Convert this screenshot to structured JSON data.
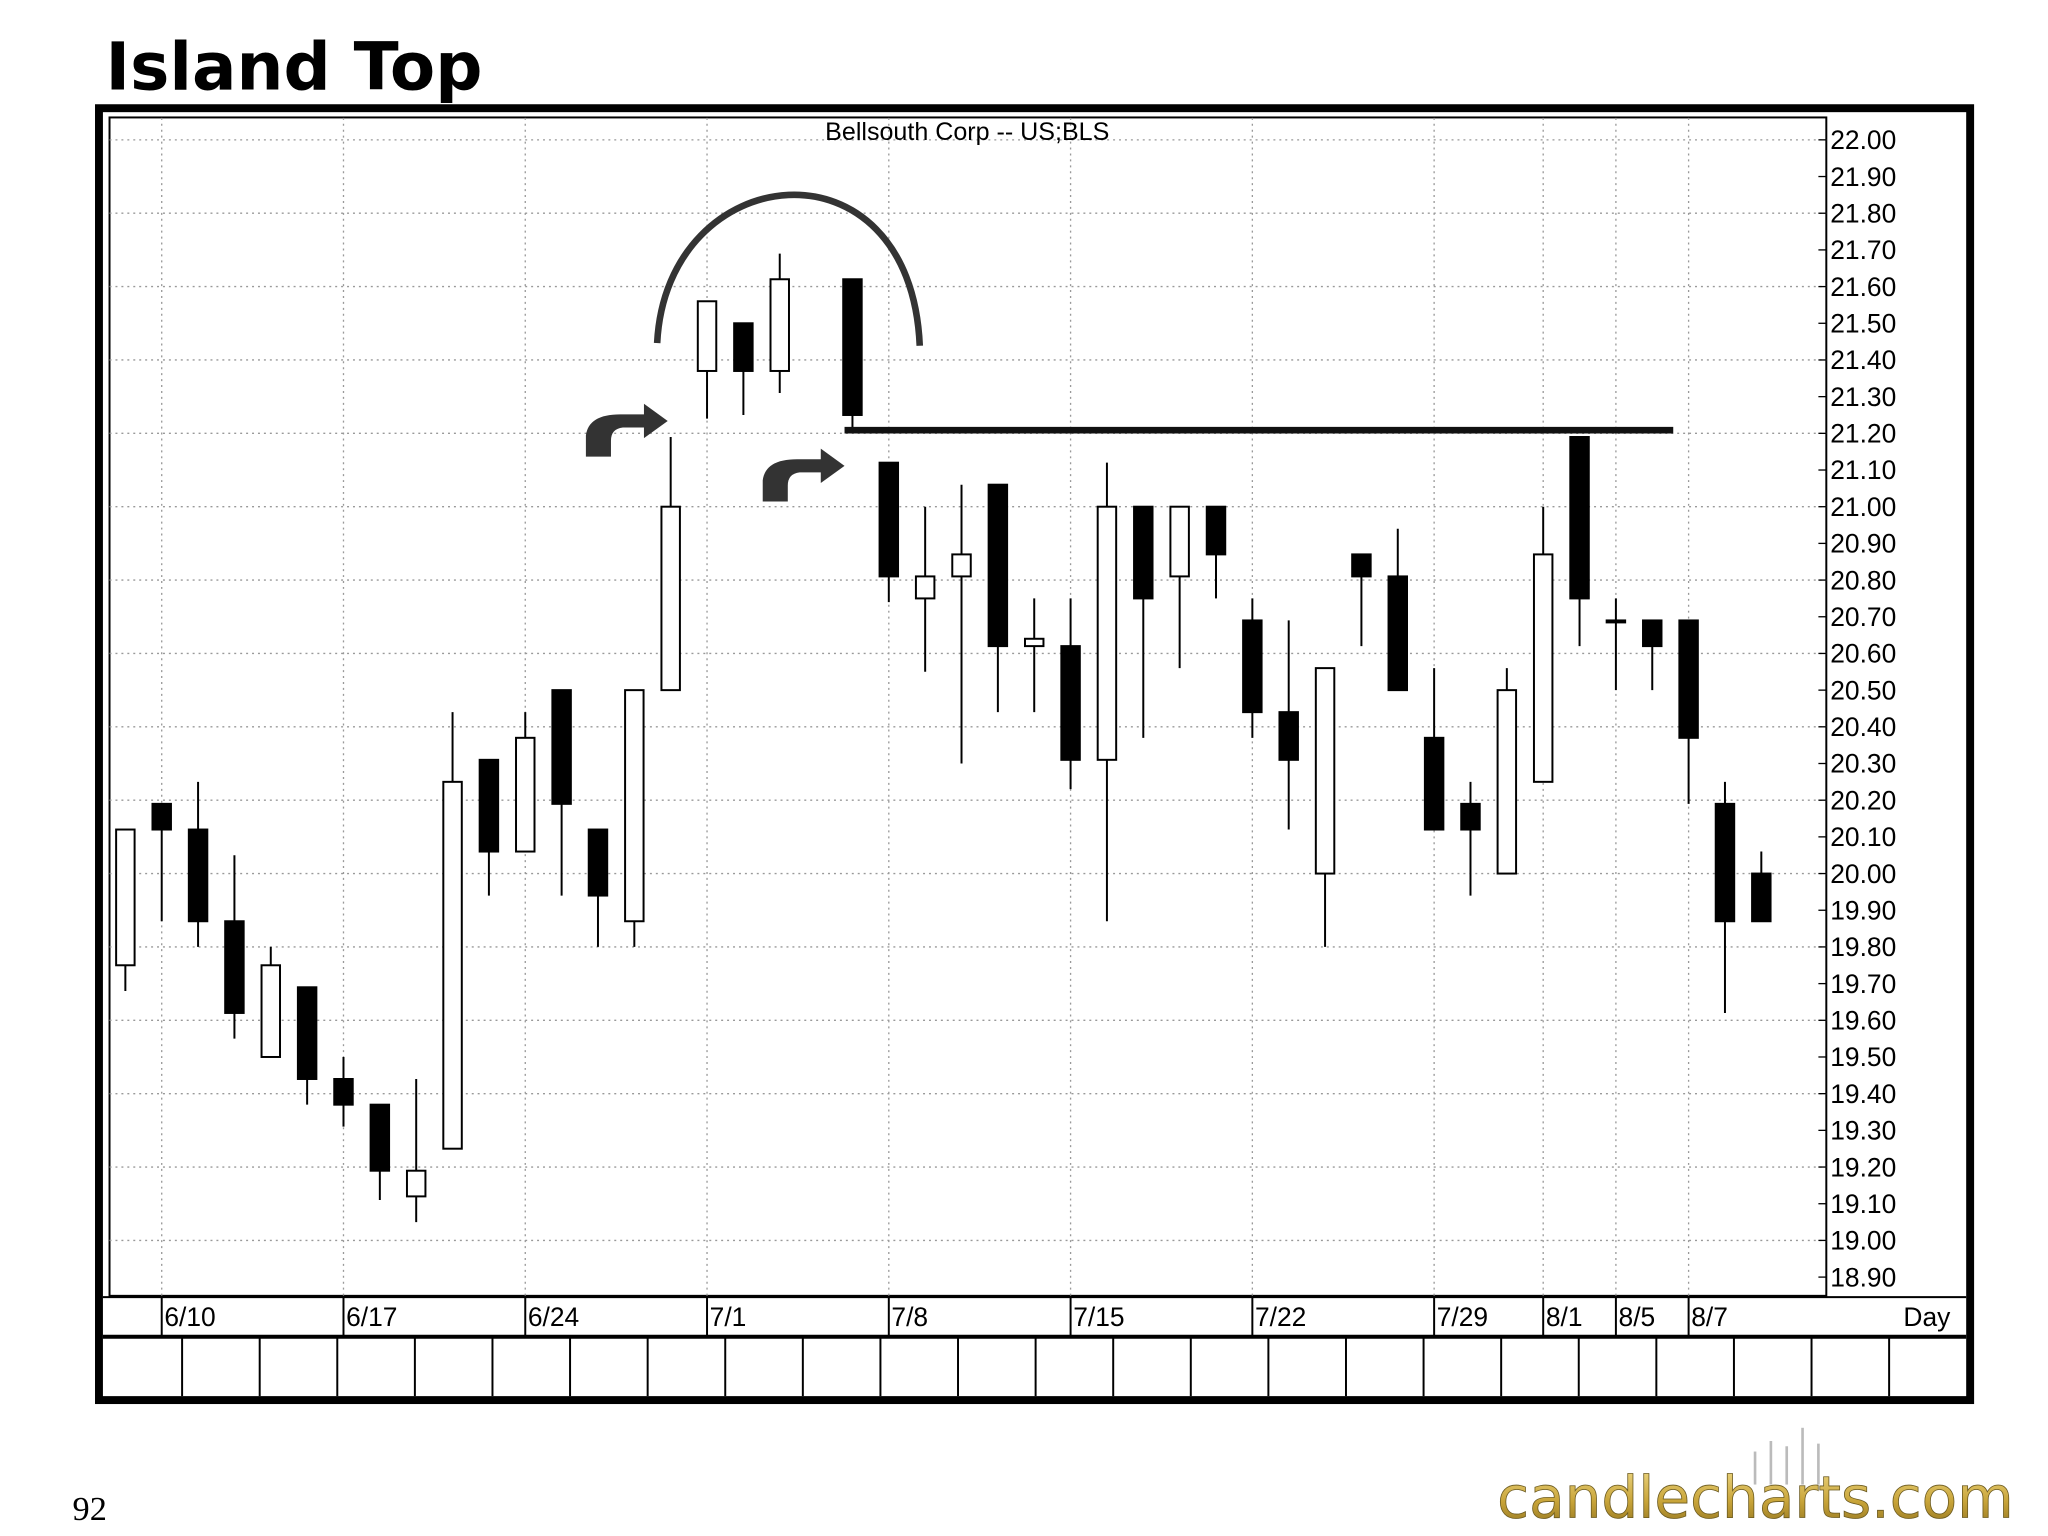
{
  "header": {
    "title": "Island Top",
    "page_number": "92",
    "logo": "candlecharts.com"
  },
  "chart_data": {
    "type": "candlestick",
    "title": "Bellsouth  Corp  --  US;BLS",
    "x_label": "Day",
    "categories": [
      null,
      "6/10",
      null,
      null,
      null,
      null,
      "6/17",
      null,
      null,
      null,
      null,
      "6/24",
      null,
      null,
      null,
      null,
      "7/1",
      null,
      null,
      null,
      null,
      "7/8",
      null,
      null,
      null,
      null,
      "7/15",
      null,
      null,
      null,
      null,
      "7/22",
      null,
      null,
      null,
      null,
      "7/29",
      null,
      null,
      "8/1",
      null,
      "8/5",
      null,
      "8/7",
      null,
      null
    ],
    "open": [
      19.75,
      20.19,
      20.12,
      19.87,
      19.5,
      19.69,
      19.44,
      19.37,
      19.12,
      19.25,
      20.31,
      20.06,
      20.5,
      20.12,
      19.87,
      20.5,
      21.37,
      21.5,
      21.37,
      null,
      21.62,
      21.12,
      20.75,
      20.81,
      21.06,
      20.62,
      20.62,
      20.31,
      21.0,
      20.81,
      21.0,
      20.69,
      20.44,
      20.0,
      20.87,
      20.81,
      20.37,
      20.19,
      20.0,
      20.25,
      21.19,
      20.69,
      20.69,
      20.69,
      20.19,
      20.0
    ],
    "high": [
      20.12,
      20.19,
      20.25,
      20.05,
      19.8,
      19.69,
      19.5,
      19.37,
      19.44,
      20.44,
      20.31,
      20.44,
      20.5,
      20.12,
      20.5,
      21.19,
      21.56,
      21.5,
      21.69,
      null,
      21.62,
      21.12,
      21.0,
      21.06,
      21.06,
      20.75,
      20.75,
      21.12,
      21.0,
      21.0,
      21.0,
      20.75,
      20.69,
      20.56,
      20.87,
      20.94,
      20.56,
      20.25,
      20.56,
      21.0,
      21.19,
      20.75,
      20.69,
      20.69,
      20.25,
      20.06
    ],
    "low": [
      19.68,
      19.87,
      19.8,
      19.55,
      19.5,
      19.37,
      19.31,
      19.11,
      19.05,
      19.25,
      19.94,
      20.06,
      19.94,
      19.8,
      19.8,
      20.5,
      21.24,
      21.25,
      21.31,
      null,
      21.21,
      20.74,
      20.55,
      20.3,
      20.44,
      20.44,
      20.23,
      19.87,
      20.37,
      20.56,
      20.75,
      20.37,
      20.12,
      19.8,
      20.62,
      20.5,
      20.12,
      19.94,
      20.0,
      20.25,
      20.62,
      20.5,
      20.5,
      20.19,
      19.62,
      19.87
    ],
    "close": [
      20.12,
      20.12,
      19.87,
      19.62,
      19.75,
      19.44,
      19.37,
      19.19,
      19.19,
      20.25,
      20.06,
      20.37,
      20.19,
      19.94,
      20.5,
      21.0,
      21.56,
      21.37,
      21.62,
      null,
      21.25,
      20.81,
      20.81,
      20.87,
      20.62,
      20.64,
      20.31,
      21.0,
      20.75,
      21.0,
      20.87,
      20.44,
      20.31,
      20.56,
      20.81,
      20.5,
      20.12,
      20.12,
      20.5,
      20.87,
      20.75,
      20.69,
      20.62,
      20.37,
      19.87,
      19.87
    ],
    "up_color": "#ffffff",
    "down_color": "#000000",
    "ylim": [
      18.85,
      22.06
    ],
    "yticks": [
      {
        "value": 18.9,
        "label": "18.90"
      },
      {
        "value": 19.0,
        "label": "19.00"
      },
      {
        "value": 19.1,
        "label": "19.10"
      },
      {
        "value": 19.2,
        "label": "19.20"
      },
      {
        "value": 19.3,
        "label": "19.30"
      },
      {
        "value": 19.4,
        "label": "19.40"
      },
      {
        "value": 19.5,
        "label": "19.50"
      },
      {
        "value": 19.6,
        "label": "19.60"
      },
      {
        "value": 19.7,
        "label": "19.70"
      },
      {
        "value": 19.8,
        "label": "19.80"
      },
      {
        "value": 19.9,
        "label": "19.90"
      },
      {
        "value": 20.0,
        "label": "20.00"
      },
      {
        "value": 20.1,
        "label": "20.10"
      },
      {
        "value": 20.2,
        "label": "20.20"
      },
      {
        "value": 20.3,
        "label": "20.30"
      },
      {
        "value": 20.4,
        "label": "20.40"
      },
      {
        "value": 20.5,
        "label": "20.50"
      },
      {
        "value": 20.6,
        "label": "20.60"
      },
      {
        "value": 20.7,
        "label": "20.70"
      },
      {
        "value": 20.8,
        "label": "20.80"
      },
      {
        "value": 20.9,
        "label": "20.90"
      },
      {
        "value": 21.0,
        "label": "21.00"
      },
      {
        "value": 21.1,
        "label": "21.10"
      },
      {
        "value": 21.2,
        "label": "21.20"
      },
      {
        "value": 21.3,
        "label": "21.30"
      },
      {
        "value": 21.4,
        "label": "21.40"
      },
      {
        "value": 21.5,
        "label": "21.50"
      },
      {
        "value": 21.6,
        "label": "21.60"
      },
      {
        "value": 21.7,
        "label": "21.70"
      },
      {
        "value": 21.8,
        "label": "21.80"
      },
      {
        "value": 21.9,
        "label": "21.90"
      },
      {
        "value": 22.0,
        "label": "22.00"
      }
    ],
    "grid": true
  }
}
